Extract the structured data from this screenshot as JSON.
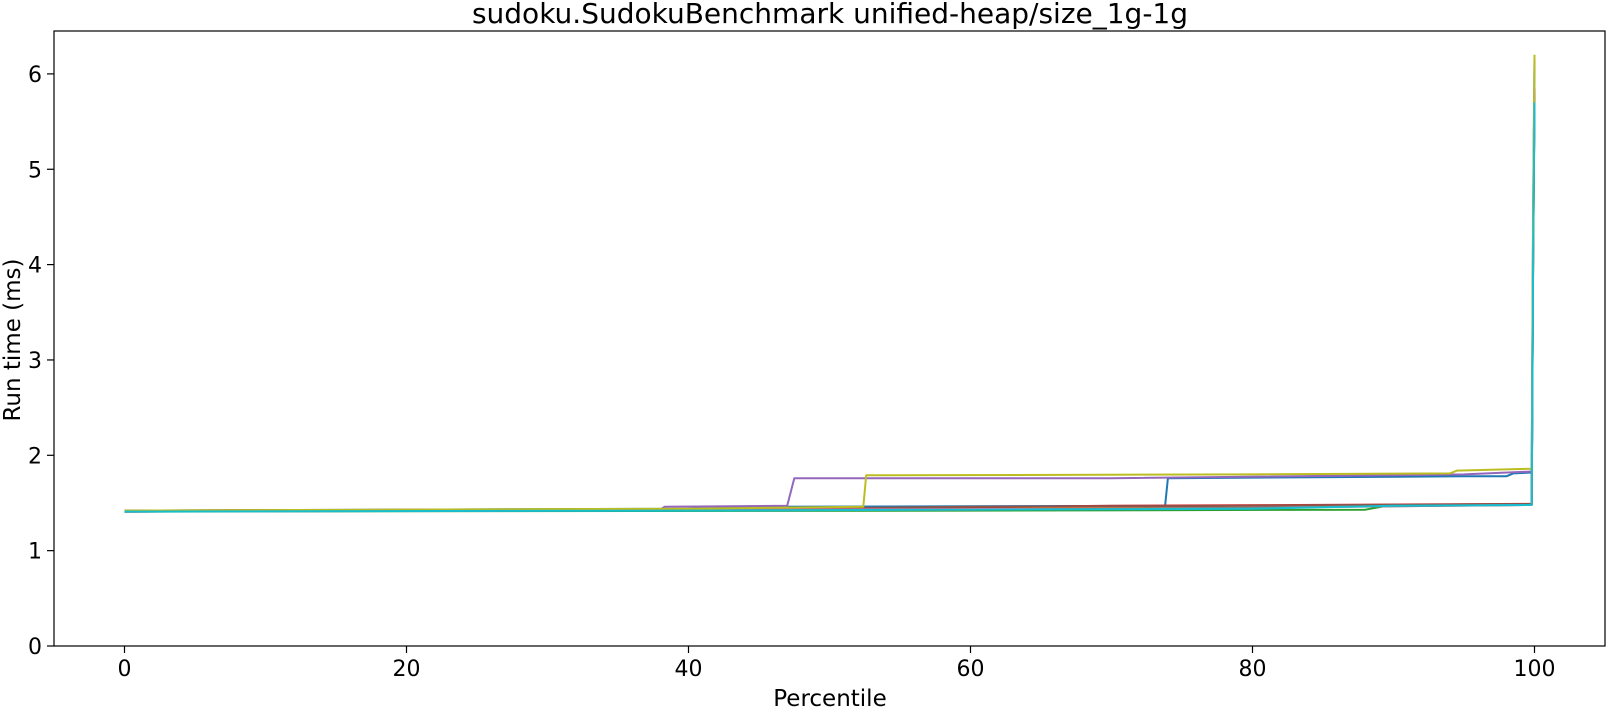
{
  "chart_data": {
    "type": "line",
    "title": "sudoku.SudokuBenchmark unified-heap/size_1g-1g",
    "xlabel": "Percentile",
    "ylabel": "Run time (ms)",
    "xlim": [
      -5,
      105
    ],
    "ylim": [
      0,
      6.45
    ],
    "x_ticks": [
      0,
      20,
      40,
      60,
      80,
      100
    ],
    "y_ticks": [
      0,
      1,
      2,
      3,
      4,
      5,
      6
    ],
    "grid": false,
    "legend": "none",
    "series": [
      {
        "color": "#1f77b4",
        "points": [
          [
            0,
            1.42
          ],
          [
            40,
            1.44
          ],
          [
            45,
            1.46
          ],
          [
            73.8,
            1.47
          ],
          [
            74,
            1.76
          ],
          [
            95,
            1.78
          ],
          [
            98,
            1.78
          ],
          [
            98.5,
            1.81
          ],
          [
            99.8,
            1.82
          ],
          [
            99.9,
            4.5
          ],
          [
            100,
            6.15
          ]
        ]
      },
      {
        "color": "#ff7f0e",
        "points": [
          [
            0,
            1.41
          ],
          [
            40,
            1.43
          ],
          [
            60,
            1.44
          ],
          [
            80,
            1.46
          ],
          [
            99.8,
            1.49
          ],
          [
            99.9,
            4.0
          ],
          [
            100,
            5.75
          ]
        ]
      },
      {
        "color": "#2ca02c",
        "points": [
          [
            0,
            1.41
          ],
          [
            60,
            1.42
          ],
          [
            88,
            1.43
          ],
          [
            89.5,
            1.47
          ],
          [
            99.8,
            1.48
          ],
          [
            99.9,
            4.2
          ],
          [
            100,
            5.8
          ]
        ]
      },
      {
        "color": "#d62728",
        "points": [
          [
            0,
            1.42
          ],
          [
            50,
            1.44
          ],
          [
            70,
            1.47
          ],
          [
            99.8,
            1.49
          ],
          [
            99.9,
            4.1
          ],
          [
            100,
            5.8
          ]
        ]
      },
      {
        "color": "#9467bd",
        "points": [
          [
            0,
            1.41
          ],
          [
            38,
            1.43
          ],
          [
            38.3,
            1.46
          ],
          [
            47,
            1.47
          ],
          [
            47.5,
            1.76
          ],
          [
            70,
            1.76
          ],
          [
            95,
            1.8
          ],
          [
            99.8,
            1.83
          ],
          [
            99.9,
            4.3
          ],
          [
            100,
            5.85
          ]
        ]
      },
      {
        "color": "#8c564b",
        "points": [
          [
            0,
            1.41
          ],
          [
            40,
            1.43
          ],
          [
            60,
            1.46
          ],
          [
            80,
            1.47
          ],
          [
            99.8,
            1.49
          ],
          [
            99.9,
            4.0
          ],
          [
            100,
            5.7
          ]
        ]
      },
      {
        "color": "#e377c2",
        "points": [
          [
            0,
            1.41
          ],
          [
            45,
            1.43
          ],
          [
            70,
            1.44
          ],
          [
            80,
            1.45
          ],
          [
            99.8,
            1.48
          ],
          [
            99.9,
            4.2
          ],
          [
            100,
            5.72
          ]
        ]
      },
      {
        "color": "#7f7f7f",
        "points": [
          [
            0,
            1.41
          ],
          [
            60,
            1.43
          ],
          [
            80,
            1.45
          ],
          [
            99.8,
            1.48
          ],
          [
            99.9,
            4.0
          ],
          [
            100,
            5.75
          ]
        ]
      },
      {
        "color": "#bcbd22",
        "points": [
          [
            0,
            1.42
          ],
          [
            40,
            1.44
          ],
          [
            52.4,
            1.46
          ],
          [
            52.6,
            1.79
          ],
          [
            80,
            1.8
          ],
          [
            94,
            1.81
          ],
          [
            94.5,
            1.84
          ],
          [
            99.8,
            1.86
          ],
          [
            99.9,
            4.6
          ],
          [
            100,
            6.2
          ]
        ]
      },
      {
        "color": "#17becf",
        "points": [
          [
            0,
            1.41
          ],
          [
            40,
            1.42
          ],
          [
            80,
            1.44
          ],
          [
            90,
            1.47
          ],
          [
            99.8,
            1.48
          ],
          [
            99.9,
            4.0
          ],
          [
            100,
            5.7
          ]
        ]
      }
    ]
  }
}
